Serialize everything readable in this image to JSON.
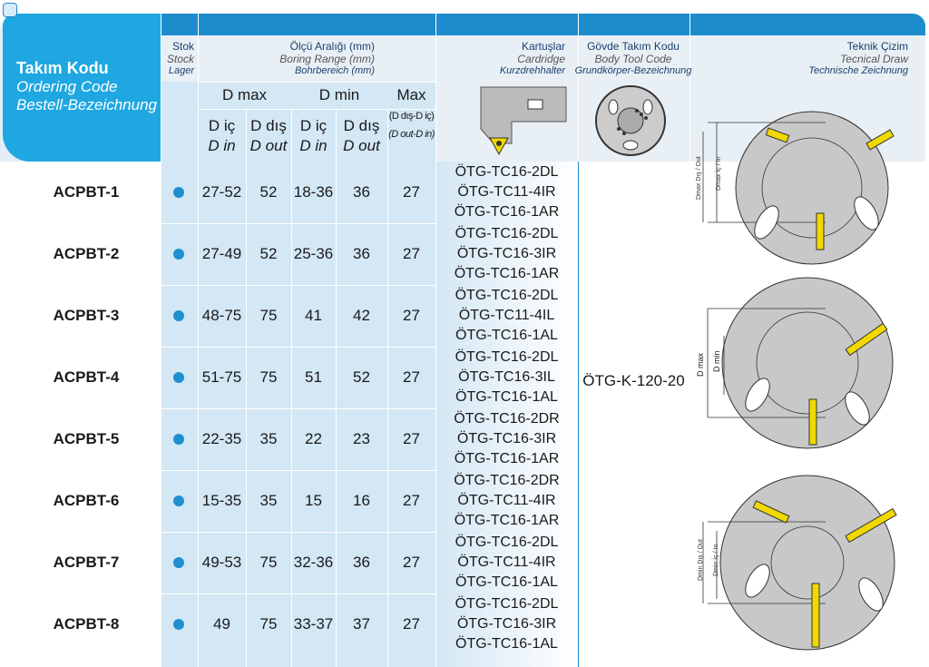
{
  "header": {
    "ordering_code": [
      "Takım Kodu",
      "Ordering Code",
      "Bestell-Bezeichnung"
    ],
    "stock": [
      "Stok",
      "Stock",
      "Lager"
    ],
    "boring_range": [
      "Ölçü Aralığı (mm)",
      "Boring Range (mm)",
      "Bohrbereich (mm)"
    ],
    "groups": [
      "D max",
      "D min",
      "Max"
    ],
    "sub": [
      [
        "D iç",
        "D in"
      ],
      [
        "D dış",
        "D out"
      ],
      [
        "D iç",
        "D in"
      ],
      [
        "D dış",
        "D out"
      ],
      [
        "(D dış-D iç)",
        "(D out-D in)"
      ]
    ],
    "cartridge": [
      "Kartuşlar",
      "Cardridge",
      "Kurzdrehhalter"
    ],
    "body_code": [
      "Gövde Takım Kodu",
      "Body Tool Code",
      "Grundkörper-Bezeichnung"
    ],
    "drawing": [
      "Teknik Çizim",
      "Tecnical Draw",
      "Technische Zeichnung"
    ]
  },
  "table": {
    "rows": [
      {
        "code": "ACPBT-1",
        "dmax_in": "27-52",
        "dmax_out": "52",
        "dmin_in": "18-36",
        "dmin_out": "36",
        "max": "27",
        "cartridges": [
          "ÖTG-TC16-2DL",
          "ÖTG-TC11-4IR",
          "ÖTG-TC16-1AR"
        ]
      },
      {
        "code": "ACPBT-2",
        "dmax_in": "27-49",
        "dmax_out": "52",
        "dmin_in": "25-36",
        "dmin_out": "36",
        "max": "27",
        "cartridges": [
          "ÖTG-TC16-2DL",
          "ÖTG-TC16-3IR",
          "ÖTG-TC16-1AR"
        ]
      },
      {
        "code": "ACPBT-3",
        "dmax_in": "48-75",
        "dmax_out": "75",
        "dmin_in": "41",
        "dmin_out": "42",
        "max": "27",
        "cartridges": [
          "ÖTG-TC16-2DL",
          "ÖTG-TC11-4IL",
          "ÖTG-TC16-1AL"
        ]
      },
      {
        "code": "ACPBT-4",
        "dmax_in": "51-75",
        "dmax_out": "75",
        "dmin_in": "51",
        "dmin_out": "52",
        "max": "27",
        "cartridges": [
          "ÖTG-TC16-2DL",
          "ÖTG-TC16-3IL",
          "ÖTG-TC16-1AL"
        ]
      },
      {
        "code": "ACPBT-5",
        "dmax_in": "22-35",
        "dmax_out": "35",
        "dmin_in": "22",
        "dmin_out": "23",
        "max": "27",
        "cartridges": [
          "ÖTG-TC16-2DR",
          "ÖTG-TC16-3IR",
          "ÖTG-TC16-1AR"
        ]
      },
      {
        "code": "ACPBT-6",
        "dmax_in": "15-35",
        "dmax_out": "35",
        "dmin_in": "15",
        "dmin_out": "16",
        "max": "27",
        "cartridges": [
          "ÖTG-TC16-2DR",
          "ÖTG-TC11-4IR",
          "ÖTG-TC16-1AR"
        ]
      },
      {
        "code": "ACPBT-7",
        "dmax_in": "49-53",
        "dmax_out": "75",
        "dmin_in": "32-36",
        "dmin_out": "36",
        "max": "27",
        "cartridges": [
          "ÖTG-TC16-2DL",
          "ÖTG-TC11-4IR",
          "ÖTG-TC16-1AL"
        ]
      },
      {
        "code": "ACPBT-8",
        "dmax_in": "49",
        "dmax_out": "75",
        "dmin_in": "33-37",
        "dmin_out": "37",
        "max": "27",
        "cartridges": [
          "ÖTG-TC16-2DL",
          "ÖTG-TC16-3IR",
          "ÖTG-TC16-1AL"
        ]
      }
    ],
    "body_code": "ÖTG-K-120-20"
  },
  "drawing_labels": {
    "top": [
      "Dmax Dış / Out",
      "Dmax İç / In"
    ],
    "middle": [
      "D max",
      "D min"
    ],
    "bottom": [
      "Dmin Dış / Out",
      "Dmin İç / In"
    ]
  }
}
